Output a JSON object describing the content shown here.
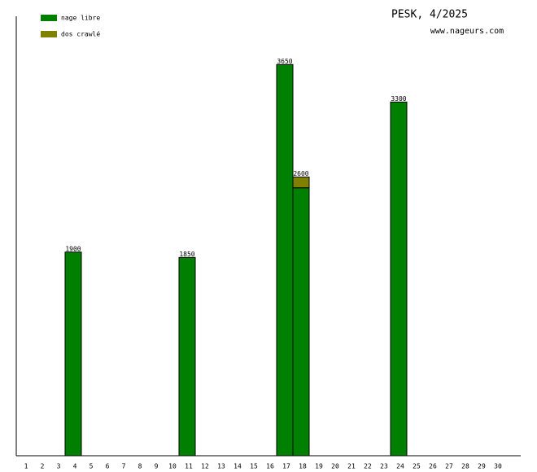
{
  "chart_data": {
    "type": "stacked-bar",
    "title": "PESK, 4/2025",
    "subtitle": "www.nageurs.com",
    "categories": [
      "1",
      "2",
      "3",
      "4",
      "5",
      "6",
      "7",
      "8",
      "9",
      "10",
      "11",
      "12",
      "13",
      "14",
      "15",
      "16",
      "17",
      "18",
      "19",
      "20",
      "21",
      "22",
      "23",
      "24",
      "25",
      "26",
      "27",
      "28",
      "29",
      "30"
    ],
    "series": [
      {
        "name": "nage libre",
        "color": "#008000",
        "values": [
          null,
          null,
          null,
          1900,
          null,
          null,
          null,
          null,
          null,
          null,
          1850,
          null,
          null,
          null,
          null,
          null,
          3650,
          2500,
          null,
          null,
          null,
          null,
          null,
          3300,
          null,
          null,
          null,
          null,
          null,
          null
        ]
      },
      {
        "name": "dos crawlé",
        "color": "#808000",
        "values": [
          null,
          null,
          null,
          null,
          null,
          null,
          null,
          null,
          null,
          null,
          null,
          null,
          null,
          null,
          null,
          null,
          null,
          100,
          null,
          null,
          null,
          null,
          null,
          null,
          null,
          null,
          null,
          null,
          null,
          null
        ]
      }
    ],
    "total_labels": [
      null,
      null,
      null,
      1900,
      null,
      null,
      null,
      null,
      null,
      null,
      1850,
      null,
      null,
      null,
      null,
      null,
      3650,
      2600,
      null,
      null,
      null,
      null,
      null,
      3300,
      null,
      null,
      null,
      null,
      null,
      null
    ],
    "ylim": [
      0,
      4100
    ]
  }
}
